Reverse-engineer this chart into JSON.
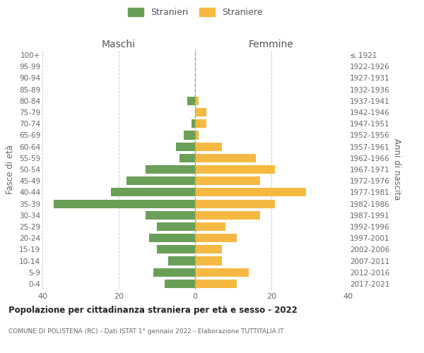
{
  "age_groups": [
    "100+",
    "95-99",
    "90-94",
    "85-89",
    "80-84",
    "75-79",
    "70-74",
    "65-69",
    "60-64",
    "55-59",
    "50-54",
    "45-49",
    "40-44",
    "35-39",
    "30-34",
    "25-29",
    "20-24",
    "15-19",
    "10-14",
    "5-9",
    "0-4"
  ],
  "birth_years": [
    "≤ 1921",
    "1922-1926",
    "1927-1931",
    "1932-1936",
    "1937-1941",
    "1942-1946",
    "1947-1951",
    "1952-1956",
    "1957-1961",
    "1962-1966",
    "1967-1971",
    "1972-1976",
    "1977-1981",
    "1982-1986",
    "1987-1991",
    "1992-1996",
    "1997-2001",
    "2002-2006",
    "2007-2011",
    "2012-2016",
    "2017-2021"
  ],
  "maschi": [
    0,
    0,
    0,
    0,
    2,
    0,
    1,
    3,
    5,
    4,
    13,
    18,
    22,
    37,
    13,
    10,
    12,
    10,
    7,
    11,
    8
  ],
  "femmine": [
    0,
    0,
    0,
    0,
    1,
    3,
    3,
    1,
    7,
    16,
    21,
    17,
    29,
    21,
    17,
    8,
    11,
    7,
    7,
    14,
    11
  ],
  "maschi_color": "#6a9f58",
  "femmine_color": "#f5b942",
  "title": "Popolazione per cittadinanza straniera per età e sesso - 2022",
  "subtitle": "COMUNE DI POLISTENA (RC) - Dati ISTAT 1° gennaio 2022 - Elaborazione TUTTITALIA.IT",
  "ylabel_left": "Fasce di età",
  "ylabel_right": "Anni di nascita",
  "xlabel_left": "Maschi",
  "xlabel_right": "Femmine",
  "legend_stranieri": "Stranieri",
  "legend_straniere": "Straniere",
  "xlim": 40,
  "background_color": "#ffffff",
  "grid_color": "#cccccc",
  "dashed_line_color": "#aaa855"
}
